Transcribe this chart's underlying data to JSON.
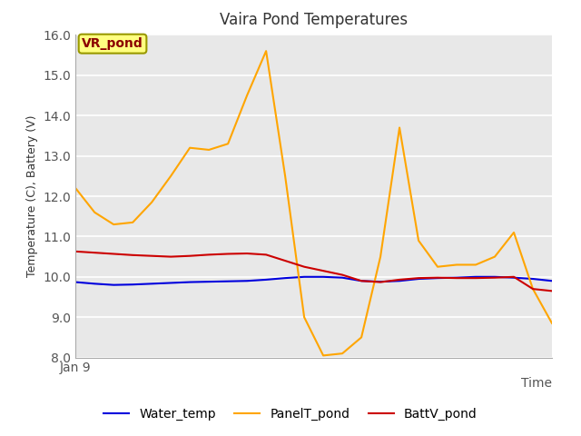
{
  "title": "Vaira Pond Temperatures",
  "xlabel": "Time",
  "ylabel": "Temperature (C), Battery (V)",
  "ylim": [
    8.0,
    16.0
  ],
  "yticks": [
    8.0,
    9.0,
    10.0,
    11.0,
    12.0,
    13.0,
    14.0,
    15.0,
    16.0
  ],
  "x_label_start": "Jan 9",
  "annotation_text": "VR_pond",
  "annotation_facecolor": "#ffff80",
  "annotation_textcolor": "#8b0000",
  "annotation_edgecolor": "#999900",
  "bg_color": "#e8e8e8",
  "fig_facecolor": "#ffffff",
  "water_temp": {
    "x": [
      0,
      0.04,
      0.08,
      0.12,
      0.16,
      0.2,
      0.24,
      0.28,
      0.32,
      0.36,
      0.4,
      0.44,
      0.48,
      0.52,
      0.56,
      0.6,
      0.64,
      0.68,
      0.72,
      0.76,
      0.8,
      0.84,
      0.88,
      0.92,
      0.96,
      1.0
    ],
    "y": [
      9.87,
      9.83,
      9.8,
      9.81,
      9.83,
      9.85,
      9.87,
      9.88,
      9.89,
      9.9,
      9.93,
      9.97,
      10.0,
      10.0,
      9.98,
      9.9,
      9.88,
      9.9,
      9.95,
      9.97,
      9.98,
      10.0,
      10.0,
      9.98,
      9.95,
      9.9
    ],
    "color": "#0000dd",
    "label": "Water_temp",
    "linewidth": 1.5
  },
  "panel_temp": {
    "x": [
      0,
      0.04,
      0.08,
      0.12,
      0.16,
      0.2,
      0.24,
      0.28,
      0.32,
      0.36,
      0.4,
      0.44,
      0.48,
      0.52,
      0.56,
      0.6,
      0.64,
      0.68,
      0.72,
      0.76,
      0.8,
      0.84,
      0.88,
      0.92,
      0.96,
      1.0
    ],
    "y": [
      12.2,
      11.6,
      11.3,
      11.35,
      11.85,
      12.5,
      13.2,
      13.15,
      13.3,
      14.5,
      15.6,
      12.5,
      9.0,
      8.05,
      8.1,
      8.5,
      10.5,
      13.7,
      10.9,
      10.25,
      10.3,
      10.3,
      10.5,
      11.1,
      9.7,
      8.85
    ],
    "color": "#ffa500",
    "label": "PanelT_pond",
    "linewidth": 1.5
  },
  "batt_temp": {
    "x": [
      0,
      0.04,
      0.08,
      0.12,
      0.16,
      0.2,
      0.24,
      0.28,
      0.32,
      0.36,
      0.4,
      0.44,
      0.48,
      0.52,
      0.56,
      0.6,
      0.64,
      0.68,
      0.72,
      0.76,
      0.8,
      0.84,
      0.88,
      0.92,
      0.96,
      1.0
    ],
    "y": [
      10.63,
      10.6,
      10.57,
      10.54,
      10.52,
      10.5,
      10.52,
      10.55,
      10.57,
      10.58,
      10.55,
      10.4,
      10.25,
      10.15,
      10.05,
      9.9,
      9.87,
      9.93,
      9.97,
      9.98,
      9.97,
      9.97,
      9.98,
      10.0,
      9.7,
      9.65
    ],
    "color": "#cc0000",
    "label": "BattV_pond",
    "linewidth": 1.5
  },
  "figsize": [
    6.4,
    4.8
  ],
  "dpi": 100
}
